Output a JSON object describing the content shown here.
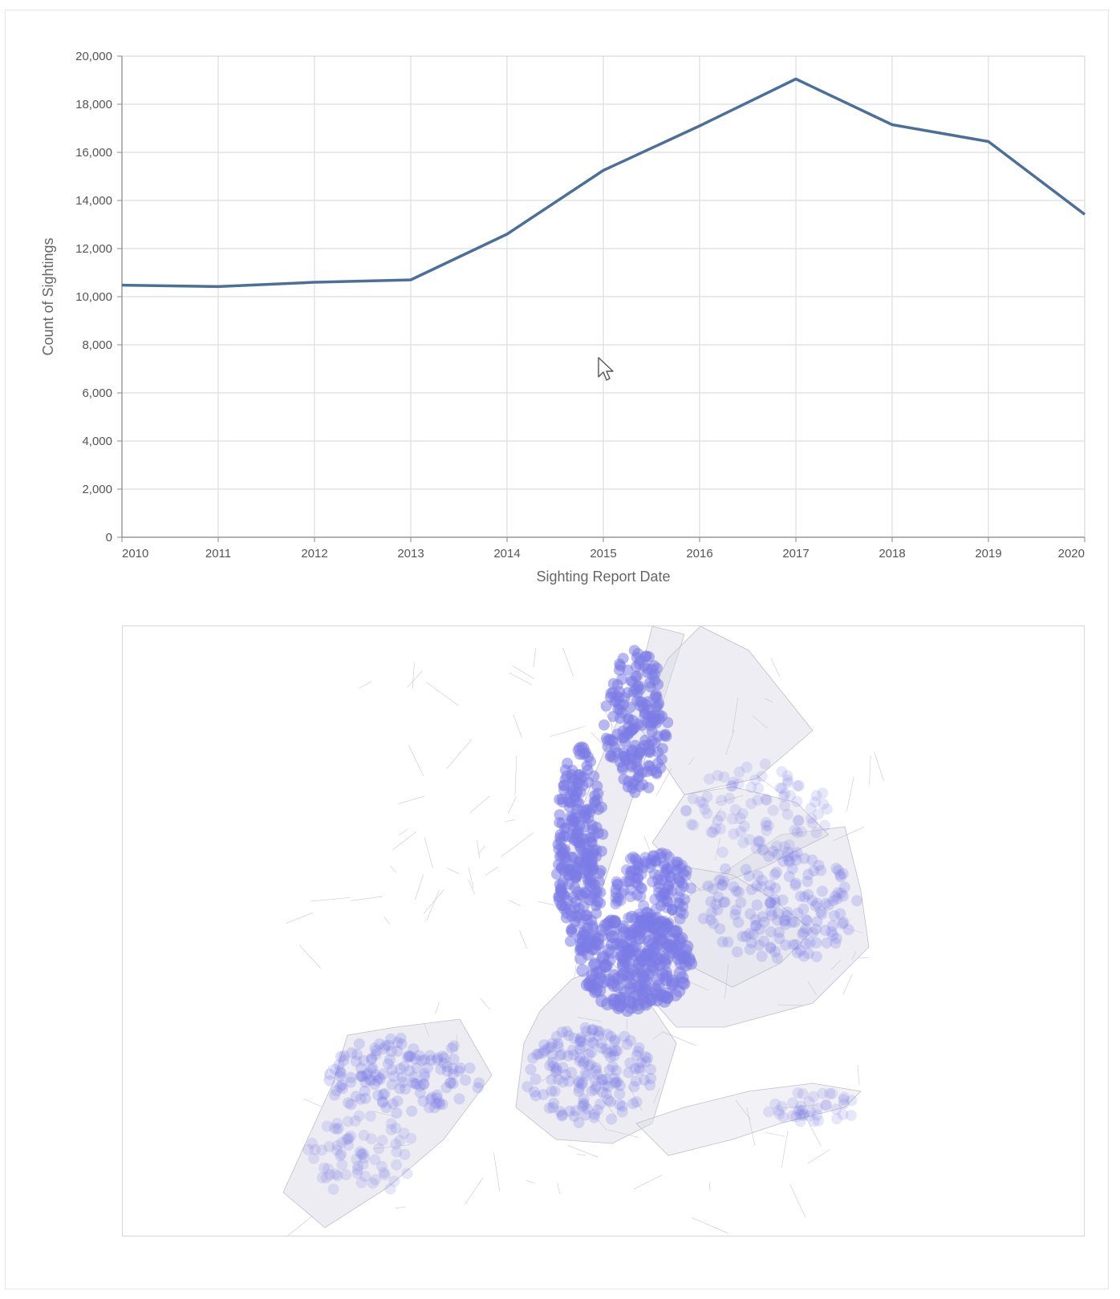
{
  "chart_data": [
    {
      "type": "line",
      "xlabel": "Sighting Report Date",
      "ylabel": "Count of Sightings",
      "x": [
        2010,
        2011,
        2012,
        2013,
        2014,
        2015,
        2016,
        2017,
        2018,
        2019,
        2020
      ],
      "x_tick_labels": [
        "2010",
        "2011",
        "2012",
        "2013",
        "2014",
        "2015",
        "2016",
        "2017",
        "2018",
        "2019",
        "2020"
      ],
      "values": [
        10480,
        10420,
        10600,
        10700,
        12600,
        15250,
        17100,
        19050,
        17150,
        16450,
        13420
      ],
      "y_ticks": [
        0,
        2000,
        4000,
        6000,
        8000,
        10000,
        12000,
        14000,
        16000,
        18000,
        20000
      ],
      "y_tick_labels": [
        "0",
        "2,000",
        "4,000",
        "6,000",
        "8,000",
        "10,000",
        "12,000",
        "14,000",
        "16,000",
        "18,000",
        "20,000"
      ],
      "ylim": [
        0,
        20000
      ],
      "xlim": [
        2010,
        2020
      ],
      "grid": true,
      "color": "#4c6f99"
    },
    {
      "type": "scatter",
      "description_kind": "map",
      "point_color": "#7b7be6",
      "base_color": "#c8c8d0"
    }
  ]
}
